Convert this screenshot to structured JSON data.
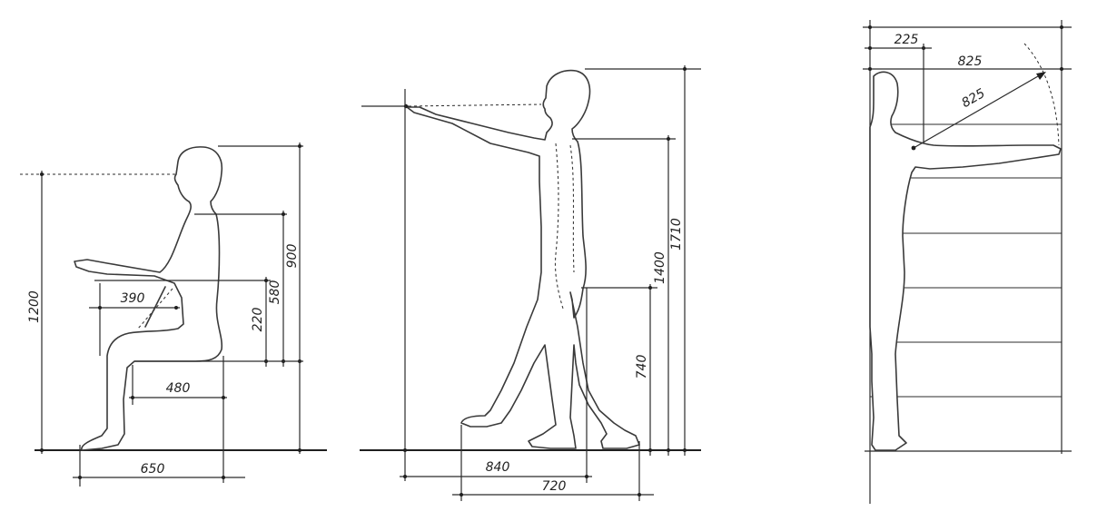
{
  "seated": {
    "h_1200": "1200",
    "h_900": "900",
    "h_580": "580",
    "h_220": "220",
    "w_390": "390",
    "w_480": "480",
    "w_650": "650"
  },
  "walking": {
    "h_1710": "1710",
    "h_1400": "1400",
    "h_740": "740",
    "w_840": "840",
    "w_720": "720"
  },
  "standing": {
    "w_225": "225",
    "w_825": "825",
    "r_825": "825"
  }
}
